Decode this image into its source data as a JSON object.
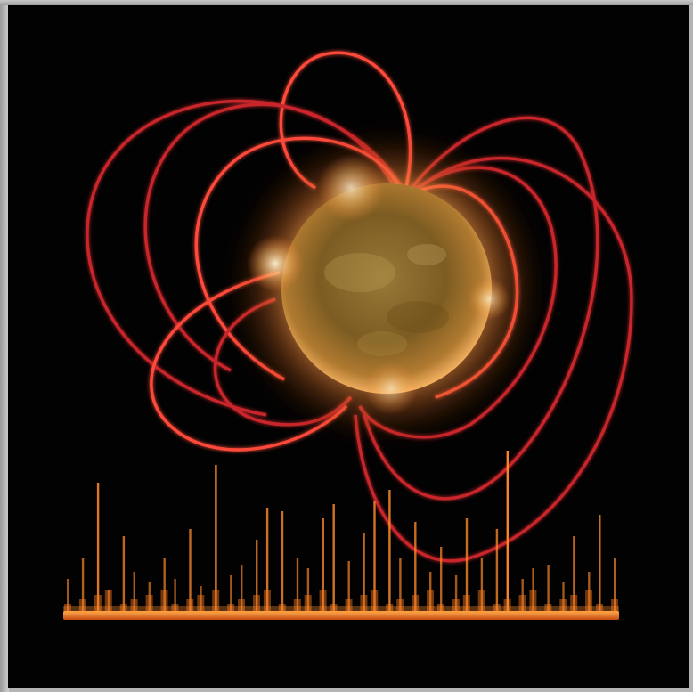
{
  "image": {
    "subject": "magnetar-illustration",
    "colors": {
      "background": "#020202",
      "frame": "#b4b4b4",
      "field_lines": "#c8252a",
      "field_lines_glow": "#ff4a3a",
      "star_core": "#8a6a2a",
      "star_glow": "#ffb060",
      "spectrum": "#ff8a2a",
      "spectrum_base": "#ff7a1c"
    },
    "spectrum_levels": [
      0.18,
      0.3,
      0.72,
      0.12,
      0.42,
      0.22,
      0.16,
      0.3,
      0.18,
      0.46,
      0.14,
      0.82,
      0.2,
      0.26,
      0.4,
      0.58,
      0.56,
      0.3,
      0.24,
      0.52,
      0.6,
      0.28,
      0.44,
      0.62,
      0.68,
      0.3,
      0.5,
      0.22,
      0.36,
      0.2,
      0.52,
      0.3,
      0.46,
      0.9,
      0.18,
      0.24,
      0.26,
      0.16,
      0.42,
      0.22,
      0.54,
      0.3
    ]
  }
}
